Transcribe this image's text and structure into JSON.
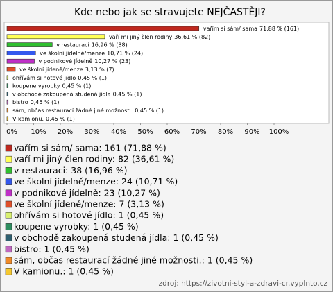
{
  "chart_data": {
    "type": "bar",
    "orientation": "horizontal",
    "title": "Kde nebo jak se stravujete NEJČASTĚJI?",
    "categories": [
      "vařím si sám/ sama",
      "vaří mi jiný člen rodiny",
      "v restauraci",
      "ve školní jídelně/menze",
      "v podnikové jídelně",
      "ve školní jídeně/menze",
      "ohřívám si hotové jídlo",
      "koupene vyrobky",
      "v obchodě zakoupená studená jídla",
      "bistro",
      "sám, občas restaurací žádné jiné možnosti.",
      "V kamionu."
    ],
    "values": [
      71.88,
      36.61,
      16.96,
      10.71,
      10.27,
      3.13,
      0.45,
      0.45,
      0.45,
      0.45,
      0.45,
      0.45
    ],
    "value_labels": [
      "71,88 % (161)",
      "36,61 % (82)",
      "16,96 % (38)",
      "10,71 % (24)",
      "10,27 % (23)",
      "3,13 % (7)",
      "0,45 % (1)",
      "0,45 % (1)",
      "0,45 % (1)",
      "0,45 % (1)",
      "0,45 % (1)",
      "0,45 % (1)"
    ],
    "colors": [
      "#c0281e",
      "#ffff55",
      "#2fc02f",
      "#3358ee",
      "#c030c8",
      "#e0502a",
      "#d8f070",
      "#2e8e60",
      "#2f6070",
      "#c068c0",
      "#f08a28",
      "#f5c830"
    ],
    "legend_labels": [
      "vařím si sám/ sama: 161 (71,88 %)",
      "vaří mi jiný člen rodiny: 82 (36,61 %)",
      "v restauraci: 38 (16,96 %)",
      "ve školní jídelně/menze: 24 (10,71 %)",
      "v podnikové jídelně: 23 (10,27 %)",
      "ve školní jídeně/menze: 7 (3,13 %)",
      "ohřívám si hotové jídlo: 1 (0,45 %)",
      "koupene vyrobky: 1 (0,45 %)",
      "v obchodě zakoupená studená jídla: 1 (0,45 %)",
      "bistro: 1 (0,45 %)",
      "sám, občas restaurací žádné jiné možnosti.: 1 (0,45 %)",
      "V kamionu.: 1 (0,45 %)"
    ],
    "xlim": [
      0,
      100
    ],
    "xticks": [
      {
        "value": 0,
        "label": "0%"
      },
      {
        "value": 10,
        "label": "10%"
      },
      {
        "value": 20,
        "label": "20%"
      },
      {
        "value": 30,
        "label": "30%"
      },
      {
        "value": 40,
        "label": "40%"
      },
      {
        "value": 50,
        "label": "50%"
      },
      {
        "value": 60,
        "label": "60%"
      },
      {
        "value": 70,
        "label": "70%"
      },
      {
        "value": 80,
        "label": "80%"
      },
      {
        "value": 90,
        "label": "90%"
      },
      {
        "value": 100,
        "label": "100%"
      }
    ],
    "source": "zdroj: https://zivotni-styl-a-zdravi-cr.vyplnto.cz"
  }
}
